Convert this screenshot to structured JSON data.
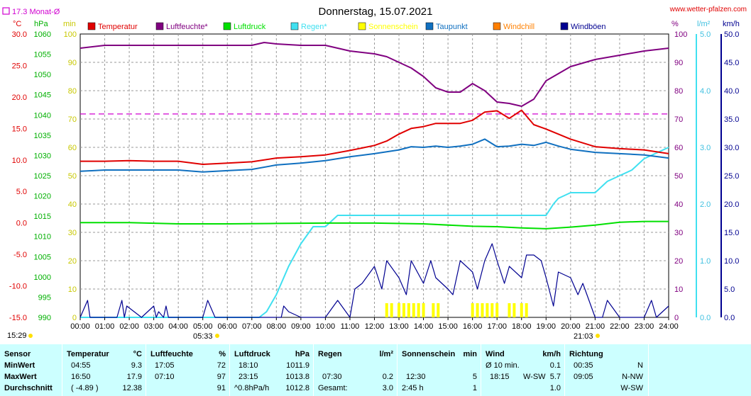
{
  "title": "Donnerstag, 15.07.2021",
  "site": "www.wetter-pfalzen.com",
  "monthly_avg_label": "17.3 Monat-Ø",
  "axes": {
    "unit_celsius": "°C",
    "unit_hpa": "hPa",
    "unit_min": "min",
    "unit_percent": "%",
    "unit_lm2": "l/m²",
    "unit_kmh": "km/h",
    "celsius_ticks": [
      "30.0",
      "25.0",
      "20.0",
      "15.0",
      "10.0",
      "5.0",
      "0.0",
      "-5.0",
      "-10.0",
      "-15.0"
    ],
    "hpa_ticks": [
      "1060",
      "1055",
      "1050",
      "1045",
      "1040",
      "1035",
      "1030",
      "1025",
      "1020",
      "1015",
      "1010",
      "1005",
      "1000",
      "995",
      "990"
    ],
    "min_ticks": [
      "100",
      "90",
      "80",
      "70",
      "60",
      "50",
      "40",
      "30",
      "20",
      "10",
      "0"
    ],
    "percent_ticks": [
      "100",
      "90",
      "80",
      "70",
      "60",
      "50",
      "40",
      "30",
      "20",
      "10",
      "0"
    ],
    "rain_ticks": [
      "5.0",
      "4.0",
      "3.0",
      "2.0",
      "1.0",
      "0.0"
    ],
    "kmh_ticks": [
      "50.0",
      "45.0",
      "40.0",
      "35.0",
      "30.0",
      "25.0",
      "20.0",
      "15.0",
      "10.0",
      "5.0",
      "0.0"
    ],
    "time_ticks": [
      "00:00",
      "01:00",
      "02:00",
      "03:00",
      "04:00",
      "05:00",
      "06:00",
      "07:00",
      "08:00",
      "09:00",
      "10:00",
      "11:00",
      "12:00",
      "13:00",
      "14:00",
      "15:00",
      "16:00",
      "17:00",
      "18:00",
      "19:00",
      "20:00",
      "21:00",
      "22:00",
      "23:00",
      "24:00"
    ],
    "sunrise": "05:33",
    "sunset": "21:03",
    "current_time": "15:29"
  },
  "legend": [
    {
      "label": "Temperatur",
      "color": "#e00000"
    },
    {
      "label": "Luftfeuchte*",
      "color": "#800080"
    },
    {
      "label": "Luftdruck",
      "color": "#00e000"
    },
    {
      "label": "Regen*",
      "color": "#40e0f0"
    },
    {
      "label": "Sonnenschein",
      "color": "#ffff00"
    },
    {
      "label": "Taupunkt",
      "color": "#1070c0"
    },
    {
      "label": "Windchill",
      "color": "#ff8000"
    },
    {
      "label": "Windböen",
      "color": "#000090"
    }
  ],
  "chart_data": {
    "type": "line",
    "x_unit": "hour",
    "xlim": [
      0,
      24
    ],
    "monthly_avg_temperature": 17.3,
    "series": [
      {
        "name": "Temperatur",
        "unit": "°C",
        "ylim": [
          -15,
          30
        ],
        "x": [
          0,
          1,
          2,
          3,
          4,
          5,
          6,
          7,
          8,
          9,
          10,
          11,
          12,
          12.5,
          13,
          13.5,
          14,
          14.5,
          15,
          15.5,
          16,
          16.5,
          17,
          17.5,
          18,
          18.5,
          19,
          19.5,
          20,
          21,
          22,
          23,
          24
        ],
        "y": [
          9.8,
          9.8,
          9.9,
          9.8,
          9.8,
          9.3,
          9.5,
          9.7,
          10.3,
          10.5,
          10.8,
          11.5,
          12.3,
          13,
          14.1,
          15,
          15.3,
          15.8,
          15.8,
          15.8,
          16.3,
          17.6,
          17.8,
          16.6,
          17.9,
          15.6,
          14.9,
          14.1,
          13.3,
          12.1,
          11.8,
          11.6,
          11
        ]
      },
      {
        "name": "Luftfeuchte*",
        "unit": "%",
        "ylim": [
          0,
          100
        ],
        "x": [
          0,
          1,
          2,
          3,
          4,
          5,
          6,
          7,
          7.5,
          8,
          9,
          10,
          11,
          12,
          12.5,
          13,
          13.5,
          14,
          14.5,
          15,
          15.5,
          16,
          16.5,
          17,
          17.5,
          18,
          18.5,
          19,
          19.5,
          20,
          21,
          22,
          23,
          24
        ],
        "y": [
          95,
          96,
          96,
          96,
          96,
          96,
          96,
          96,
          97,
          96.5,
          96,
          96,
          94,
          93,
          92,
          90,
          88,
          85,
          81,
          79.5,
          79.5,
          82.5,
          80,
          76,
          75.5,
          74.5,
          77,
          83.5,
          86,
          88.5,
          91,
          92.5,
          94,
          95
        ]
      },
      {
        "name": "Luftdruck",
        "unit": "hPa",
        "ylim": [
          990,
          1060
        ],
        "x": [
          0,
          2,
          4,
          6,
          8,
          10,
          12,
          14,
          16,
          17,
          18,
          19,
          20,
          21,
          22,
          23,
          24
        ],
        "y": [
          1013.4,
          1013.4,
          1013.1,
          1013.1,
          1013.2,
          1013.3,
          1013.3,
          1013.1,
          1012.5,
          1012.4,
          1012.1,
          1011.9,
          1012.3,
          1012.8,
          1013.5,
          1013.7,
          1013.7
        ]
      },
      {
        "name": "Regen*",
        "unit": "l/m²",
        "ylim": [
          0,
          5
        ],
        "x": [
          0,
          7.3,
          7.6,
          8,
          8.5,
          9,
          9.5,
          10,
          10.5,
          11,
          12,
          13,
          14,
          15,
          16,
          17,
          18,
          19,
          19.3,
          19.5,
          20,
          20.5,
          21,
          21.5,
          22,
          22.5,
          23,
          23.5,
          24
        ],
        "y": [
          0,
          0,
          0.1,
          0.4,
          0.9,
          1.3,
          1.6,
          1.6,
          1.8,
          1.8,
          1.8,
          1.8,
          1.8,
          1.8,
          1.8,
          1.8,
          1.8,
          1.8,
          2.0,
          2.1,
          2.2,
          2.2,
          2.2,
          2.4,
          2.5,
          2.6,
          2.8,
          2.9,
          3.0
        ]
      },
      {
        "name": "Taupunkt",
        "unit": "°C",
        "ylim": [
          -15,
          30
        ],
        "x": [
          0,
          1,
          2,
          3,
          4,
          5,
          6,
          7,
          8,
          9,
          10,
          11,
          12,
          12.5,
          13,
          13.5,
          14,
          14.5,
          15,
          15.5,
          16,
          16.5,
          17,
          17.5,
          18,
          18.5,
          19,
          19.5,
          20,
          21,
          22,
          23,
          24
        ],
        "y": [
          8.2,
          8.4,
          8.4,
          8.4,
          8.4,
          8.1,
          8.3,
          8.5,
          9.2,
          9.5,
          9.9,
          10.5,
          11,
          11.3,
          11.6,
          12.1,
          12,
          12.2,
          12,
          12.2,
          12.5,
          13.3,
          12.1,
          12.2,
          12.5,
          12.3,
          12.8,
          12.2,
          11.7,
          11.2,
          11.0,
          10.8,
          10.3
        ]
      },
      {
        "name": "Windböen",
        "unit": "km/h",
        "ylim": [
          0,
          50
        ],
        "x": [
          0,
          0.3,
          0.4,
          0.5,
          1.5,
          1.7,
          1.8,
          1.9,
          2.5,
          3,
          3.1,
          3.2,
          3.4,
          3.5,
          3.6,
          4,
          5,
          5.2,
          5.3,
          5.5,
          6,
          7,
          7.5,
          8,
          8.2,
          8.3,
          8.5,
          9,
          10,
          10.5,
          11,
          11.2,
          11.5,
          12,
          12.3,
          12.5,
          13,
          13.3,
          13.5,
          14,
          14.3,
          14.5,
          15,
          15.2,
          15.5,
          16,
          16.2,
          16.5,
          16.8,
          17,
          17.3,
          17.5,
          18,
          18.2,
          18.5,
          18.8,
          19,
          19.3,
          19.5,
          20,
          20.3,
          20.5,
          21,
          21.3,
          21.5,
          22,
          22.2,
          22.5,
          23,
          23.3,
          23.5,
          24
        ],
        "y": [
          0,
          3,
          0,
          0,
          0,
          3,
          0,
          2,
          0,
          2,
          0,
          1,
          0,
          2,
          0,
          0,
          0,
          3,
          2,
          0,
          0,
          0,
          0,
          0,
          0,
          2,
          1,
          0,
          0,
          3,
          0,
          5,
          6,
          9,
          5,
          10,
          7,
          4,
          10,
          6,
          10,
          7,
          5,
          4,
          10,
          8,
          5,
          10,
          13,
          10,
          6,
          9,
          7,
          11,
          11,
          10,
          7,
          2,
          8,
          7,
          4,
          6,
          0,
          0,
          3,
          0,
          0,
          0,
          0,
          3,
          0,
          2
        ]
      },
      {
        "name": "Sonnenschein",
        "unit": "min",
        "ylim": [
          0,
          100
        ],
        "x": [
          12.5,
          12.7,
          13,
          13.2,
          13.4,
          13.6,
          13.8,
          14,
          14.4,
          14.6,
          16,
          16.2,
          16.4,
          16.6,
          16.8,
          17,
          17.5,
          17.7,
          18,
          18.2
        ],
        "y": [
          5,
          5,
          5,
          5,
          5,
          5,
          5,
          5,
          5,
          5,
          5,
          5,
          5,
          5,
          5,
          5,
          5,
          5,
          5,
          5
        ]
      }
    ]
  },
  "stats": {
    "sensor": {
      "header": "Sensor",
      "rows": [
        "MinWert",
        "MaxWert",
        "Durchschnitt"
      ]
    },
    "temperature": {
      "header": "Temperatur",
      "unit": "°C",
      "rows": [
        [
          "04:55",
          "9.3"
        ],
        [
          "16:50",
          "17.9"
        ],
        [
          "( -4.89 )",
          "12.38"
        ]
      ]
    },
    "humidity": {
      "header": "Luftfeuchte",
      "unit": "%",
      "rows": [
        [
          "17:05",
          "72"
        ],
        [
          "07:10",
          "97"
        ],
        [
          "",
          "91"
        ]
      ]
    },
    "pressure": {
      "header": "Luftdruck",
      "unit": "hPa",
      "rows": [
        [
          "18:10",
          "1011.9"
        ],
        [
          "23:15",
          "1013.8"
        ],
        [
          "^0.8hPa/h",
          "1012.8"
        ]
      ]
    },
    "rain": {
      "header": "Regen",
      "unit": "l/m²",
      "rows": [
        [
          "",
          ""
        ],
        [
          "07:30",
          "0.2"
        ],
        [
          "Gesamt:",
          "3.0"
        ]
      ]
    },
    "sun": {
      "header": "Sonnenschein",
      "unit": "min",
      "rows": [
        [
          "",
          ""
        ],
        [
          "12:30",
          "5"
        ],
        [
          "2:45 h",
          "1"
        ]
      ]
    },
    "wind": {
      "header": "Wind",
      "unit": "km/h",
      "rows": [
        [
          "Ø 10 min.",
          "",
          "0.1"
        ],
        [
          "18:15",
          "W-SW",
          "5.7"
        ],
        [
          "",
          "",
          "1.0"
        ]
      ]
    },
    "direction": {
      "header": "Richtung",
      "rows": [
        [
          "00:35",
          "N"
        ],
        [
          "09:05",
          "N-NW"
        ],
        [
          "",
          "W-SW"
        ]
      ]
    }
  }
}
